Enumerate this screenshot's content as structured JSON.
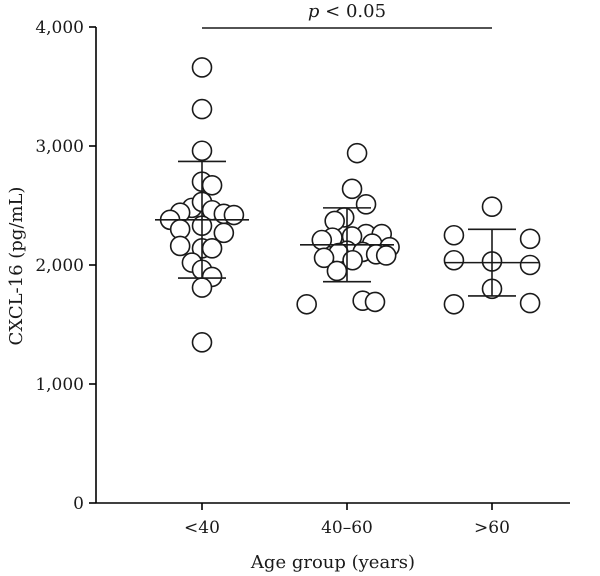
{
  "chart_data": {
    "type": "scatter",
    "xlabel": "Age group (years)",
    "ylabel": "CXCL-16 (pg/mL)",
    "ylim": [
      0,
      4000
    ],
    "yticks": [
      0,
      1000,
      2000,
      3000,
      4000
    ],
    "ytick_labels": [
      "0",
      "1,000",
      "2,000",
      "3,000",
      "4,000"
    ],
    "categories": [
      "<40",
      "40–60",
      ">60"
    ],
    "annotation": {
      "p_symbol": "p",
      "text": " < 0.05",
      "from_category": "<40",
      "to_category": ">60"
    },
    "groups": [
      {
        "category": "<40",
        "mean": 2380,
        "sd_upper": 2870,
        "sd_lower": 1890,
        "points": [
          {
            "offset": 0.0,
            "y": 3660
          },
          {
            "offset": 0.0,
            "y": 3310
          },
          {
            "offset": 0.0,
            "y": 2960
          },
          {
            "offset": 0.0,
            "y": 2700
          },
          {
            "offset": 0.18,
            "y": 2670
          },
          {
            "offset": -0.18,
            "y": 2480
          },
          {
            "offset": 0.0,
            "y": 2530
          },
          {
            "offset": 0.18,
            "y": 2460
          },
          {
            "offset": -0.39,
            "y": 2440
          },
          {
            "offset": 0.39,
            "y": 2430
          },
          {
            "offset": -0.57,
            "y": 2380
          },
          {
            "offset": 0.57,
            "y": 2420
          },
          {
            "offset": 0.0,
            "y": 2330
          },
          {
            "offset": -0.39,
            "y": 2300
          },
          {
            "offset": 0.39,
            "y": 2270
          },
          {
            "offset": -0.39,
            "y": 2160
          },
          {
            "offset": 0.0,
            "y": 2140
          },
          {
            "offset": 0.18,
            "y": 2140
          },
          {
            "offset": -0.18,
            "y": 2020
          },
          {
            "offset": 0.0,
            "y": 1960
          },
          {
            "offset": 0.18,
            "y": 1900
          },
          {
            "offset": 0.0,
            "y": 1810
          },
          {
            "offset": 0.0,
            "y": 1350
          }
        ]
      },
      {
        "category": "40–60",
        "mean": 2170,
        "sd_upper": 2480,
        "sd_lower": 1860,
        "points": [
          {
            "offset": 0.18,
            "y": 2940
          },
          {
            "offset": 0.09,
            "y": 2640
          },
          {
            "offset": 0.34,
            "y": 2510
          },
          {
            "offset": -0.05,
            "y": 2400
          },
          {
            "offset": -0.22,
            "y": 2370
          },
          {
            "offset": 0.34,
            "y": 2260
          },
          {
            "offset": 0.09,
            "y": 2240
          },
          {
            "offset": -0.26,
            "y": 2230
          },
          {
            "offset": 0.62,
            "y": 2260
          },
          {
            "offset": -0.45,
            "y": 2210
          },
          {
            "offset": 0.45,
            "y": 2180
          },
          {
            "offset": 0.76,
            "y": 2150
          },
          {
            "offset": 0.0,
            "y": 2120
          },
          {
            "offset": 0.28,
            "y": 2110
          },
          {
            "offset": -0.15,
            "y": 2100
          },
          {
            "offset": 0.52,
            "y": 2090
          },
          {
            "offset": 0.7,
            "y": 2080
          },
          {
            "offset": -0.41,
            "y": 2060
          },
          {
            "offset": 0.1,
            "y": 2040
          },
          {
            "offset": -0.18,
            "y": 1950
          },
          {
            "offset": 0.28,
            "y": 1700
          },
          {
            "offset": -0.72,
            "y": 1670
          },
          {
            "offset": 0.5,
            "y": 1690
          }
        ]
      },
      {
        "category": ">60",
        "mean": 2020,
        "sd_upper": 2300,
        "sd_lower": 1740,
        "points": [
          {
            "offset": 0.0,
            "y": 2490
          },
          {
            "offset": -0.68,
            "y": 2250
          },
          {
            "offset": 0.68,
            "y": 2220
          },
          {
            "offset": -0.68,
            "y": 2040
          },
          {
            "offset": 0.0,
            "y": 2030
          },
          {
            "offset": 0.68,
            "y": 2000
          },
          {
            "offset": 0.0,
            "y": 1800
          },
          {
            "offset": -0.68,
            "y": 1670
          },
          {
            "offset": 0.68,
            "y": 1680
          }
        ]
      }
    ]
  }
}
